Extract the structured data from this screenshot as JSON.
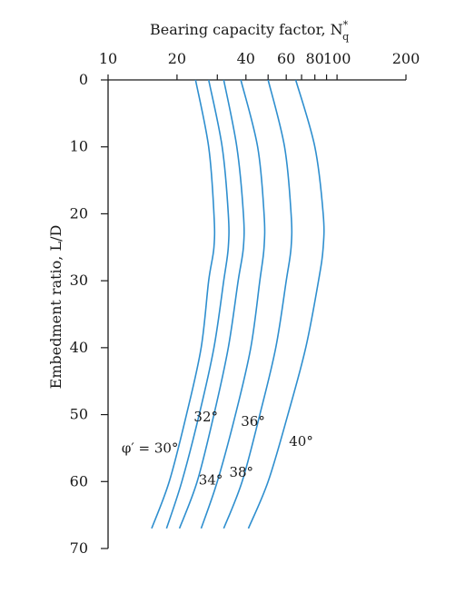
{
  "chart_data": {
    "type": "line",
    "xlabel": "Bearing capacity factor, N",
    "xlabel_symbol_sup": "*",
    "xlabel_symbol_sub": "q",
    "ylabel": "Embedment ratio, L/D",
    "x_scale": "log",
    "xlim": [
      10,
      200
    ],
    "ylim": [
      0,
      70
    ],
    "y_inverted": true,
    "x_axis_position": "top",
    "grid": false,
    "xticks": [
      10,
      20,
      40,
      60,
      80,
      100,
      200
    ],
    "xtick_labels": [
      "10",
      "20",
      "40",
      "60",
      "80",
      "100",
      "200"
    ],
    "yticks": [
      0,
      10,
      20,
      30,
      40,
      50,
      60,
      70
    ],
    "ytick_labels": [
      "0",
      "10",
      "20",
      "30",
      "40",
      "50",
      "60",
      "70"
    ],
    "series": [
      {
        "name": "φ′ = 30°",
        "label": "φ′ = 30°",
        "points": [
          [
            24.1,
            0
          ],
          [
            27.5,
            10
          ],
          [
            29,
            20
          ],
          [
            29,
            25
          ],
          [
            27.5,
            30
          ],
          [
            25.5,
            40
          ],
          [
            22,
            50
          ],
          [
            18.5,
            60
          ],
          [
            15.5,
            67
          ]
        ]
      },
      {
        "name": "32°",
        "label": "32°",
        "points": [
          [
            27.5,
            0
          ],
          [
            31.5,
            10
          ],
          [
            33.5,
            20
          ],
          [
            33.5,
            25
          ],
          [
            32,
            30
          ],
          [
            29,
            40
          ],
          [
            25,
            50
          ],
          [
            21,
            60
          ],
          [
            18,
            67
          ]
        ]
      },
      {
        "name": "34°",
        "label": "34°",
        "points": [
          [
            32,
            0
          ],
          [
            36.5,
            10
          ],
          [
            39,
            20
          ],
          [
            39,
            25
          ],
          [
            37,
            30
          ],
          [
            33.5,
            40
          ],
          [
            29,
            50
          ],
          [
            24.5,
            60
          ],
          [
            20.5,
            67
          ]
        ]
      },
      {
        "name": "36°",
        "label": "36°",
        "points": [
          [
            38,
            0
          ],
          [
            45,
            10
          ],
          [
            48,
            20
          ],
          [
            48,
            25
          ],
          [
            46,
            30
          ],
          [
            42,
            40
          ],
          [
            36,
            50
          ],
          [
            30,
            60
          ],
          [
            25.5,
            67
          ]
        ]
      },
      {
        "name": "38°",
        "label": "38°",
        "points": [
          [
            50,
            0
          ],
          [
            59,
            10
          ],
          [
            63,
            20
          ],
          [
            63,
            25
          ],
          [
            60,
            30
          ],
          [
            54,
            40
          ],
          [
            46,
            50
          ],
          [
            38.5,
            60
          ],
          [
            32,
            67
          ]
        ]
      },
      {
        "name": "40°",
        "label": "40°",
        "points": [
          [
            66,
            0
          ],
          [
            80,
            10
          ],
          [
            87,
            20
          ],
          [
            87,
            25
          ],
          [
            83,
            30
          ],
          [
            73,
            40
          ],
          [
            61,
            50
          ],
          [
            50,
            60
          ],
          [
            41,
            67
          ]
        ]
      }
    ]
  }
}
